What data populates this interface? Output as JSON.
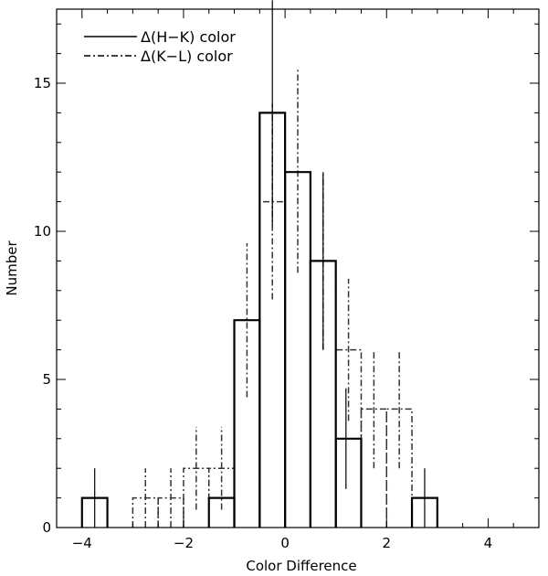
{
  "chart_data": {
    "type": "histogram",
    "xlabel": "Color Difference",
    "ylabel": "Number",
    "xlim": [
      -4.5,
      5.0
    ],
    "ylim": [
      0,
      17.5
    ],
    "x_ticks": [
      -4,
      -2,
      0,
      2,
      4
    ],
    "y_ticks": [
      0,
      5,
      10,
      15
    ],
    "x_tick_labels": [
      "−4",
      "−2",
      "0",
      "2",
      "4"
    ],
    "y_tick_labels": [
      "0",
      "5",
      "10",
      "15"
    ],
    "bin_width": 0.5,
    "grid": false,
    "legend_position": "top-left",
    "series": [
      {
        "name": "Δ(H−K) color",
        "line_style": "solid",
        "bins": [
          {
            "start": -4.0,
            "value": 1
          },
          {
            "start": -3.5,
            "value": 0
          },
          {
            "start": -3.0,
            "value": 0
          },
          {
            "start": -2.5,
            "value": 0
          },
          {
            "start": -2.0,
            "value": 0
          },
          {
            "start": -1.5,
            "value": 1
          },
          {
            "start": -1.0,
            "value": 7
          },
          {
            "start": -0.5,
            "value": 14
          },
          {
            "start": 0.0,
            "value": 12
          },
          {
            "start": 0.5,
            "value": 9
          },
          {
            "start": 1.0,
            "value": 3
          },
          {
            "start": 1.5,
            "value": 0
          },
          {
            "start": 2.0,
            "value": 0
          },
          {
            "start": 2.5,
            "value": 1
          }
        ],
        "error_bars": [
          {
            "x": -3.75,
            "low": 0,
            "high": 2.0
          },
          {
            "x": -0.25,
            "low": 10.2,
            "high": 17.8
          },
          {
            "x": 0.75,
            "low": 6.0,
            "high": 12.0
          },
          {
            "x": 1.2,
            "low": 1.3,
            "high": 4.7
          },
          {
            "x": 2.75,
            "low": 0,
            "high": 2.0
          }
        ]
      },
      {
        "name": "Δ(K−L) color",
        "line_style": "dash-dot",
        "bins": [
          {
            "start": -3.0,
            "value": 1
          },
          {
            "start": -2.5,
            "value": 1
          },
          {
            "start": -2.0,
            "value": 2
          },
          {
            "start": -1.5,
            "value": 2
          },
          {
            "start": -1.0,
            "value": 7
          },
          {
            "start": -0.5,
            "value": 11
          },
          {
            "start": 0.0,
            "value": 12
          },
          {
            "start": 0.5,
            "value": 9
          },
          {
            "start": 1.0,
            "value": 6
          },
          {
            "start": 1.5,
            "value": 4
          },
          {
            "start": 2.0,
            "value": 4
          }
        ],
        "error_bars": [
          {
            "x": -2.75,
            "low": 0,
            "high": 2.0
          },
          {
            "x": -2.25,
            "low": 0,
            "high": 2.0
          },
          {
            "x": -1.75,
            "low": 0.6,
            "high": 3.4
          },
          {
            "x": -1.25,
            "low": 0.6,
            "high": 3.4
          },
          {
            "x": -0.75,
            "low": 4.4,
            "high": 9.6
          },
          {
            "x": -0.25,
            "low": 7.7,
            "high": 14.3
          },
          {
            "x": 0.25,
            "low": 8.6,
            "high": 15.5
          },
          {
            "x": 0.75,
            "low": 6.0,
            "high": 12.0
          },
          {
            "x": 1.25,
            "low": 3.6,
            "high": 8.4
          },
          {
            "x": 1.75,
            "low": 2.0,
            "high": 6.0
          },
          {
            "x": 2.25,
            "low": 2.0,
            "high": 6.0
          }
        ]
      }
    ]
  }
}
